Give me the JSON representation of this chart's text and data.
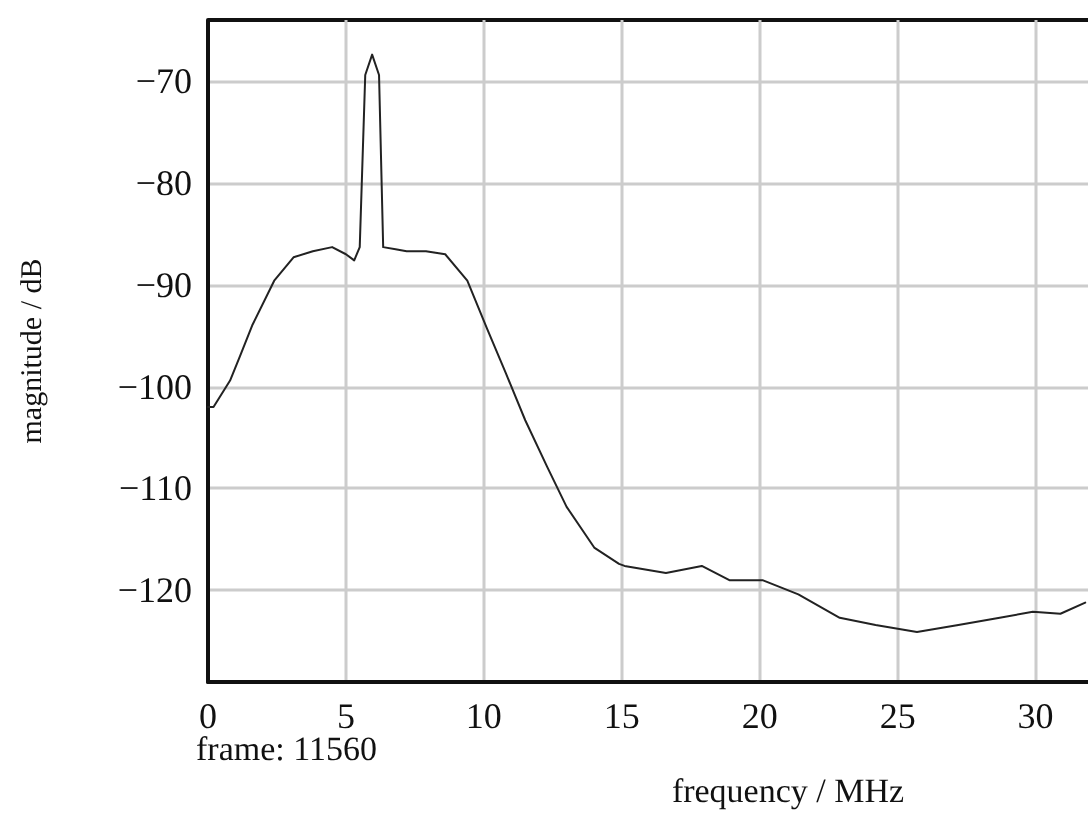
{
  "chart_data": {
    "type": "line",
    "xlabel": "frequency / MHz",
    "ylabel": "magnitude / dB",
    "annotations": [
      "frame: 11560"
    ],
    "xlim": [
      0,
      31.9
    ],
    "ylim": [
      -129,
      -64
    ],
    "xticks": [
      0,
      5,
      10,
      15,
      20,
      25,
      30
    ],
    "yticks": [
      -120,
      -110,
      -100,
      -90,
      -80,
      -70
    ],
    "grid": true,
    "marker": "none",
    "line_style": "solid",
    "series": [
      {
        "color": "#222222",
        "x": [
          0,
          0.2,
          0.8,
          1.16,
          1.6,
          2.4,
          3.1,
          3.8,
          4.5,
          5.0,
          5.3,
          5.5,
          5.7,
          5.95,
          6.2,
          6.35,
          6.8,
          7.2,
          7.9,
          8.6,
          9.4,
          10.1,
          10.8,
          11.5,
          12.3,
          13,
          14,
          14.9,
          15.1,
          16.6,
          17.9,
          18.9,
          20.1,
          21.4,
          22.9,
          24.2,
          25.7,
          27.2,
          28.7,
          29.9,
          30.9,
          31.8
        ],
        "values": [
          -102,
          -102,
          -99.4,
          -97,
          -94,
          -89.6,
          -87.3,
          -86.7,
          -86.3,
          -87,
          -87.6,
          -86.3,
          -69.4,
          -67.4,
          -69.4,
          -86.3,
          -86.5,
          -86.7,
          -86.7,
          -87,
          -89.6,
          -94.2,
          -98.7,
          -103.3,
          -107.9,
          -111.8,
          -115.8,
          -117.4,
          -117.6,
          -118.3,
          -117.6,
          -119,
          -119,
          -120.4,
          -122.7,
          -123.4,
          -124.1,
          -123.4,
          -122.7,
          -122.1,
          -122.3,
          -121.2
        ]
      }
    ]
  }
}
